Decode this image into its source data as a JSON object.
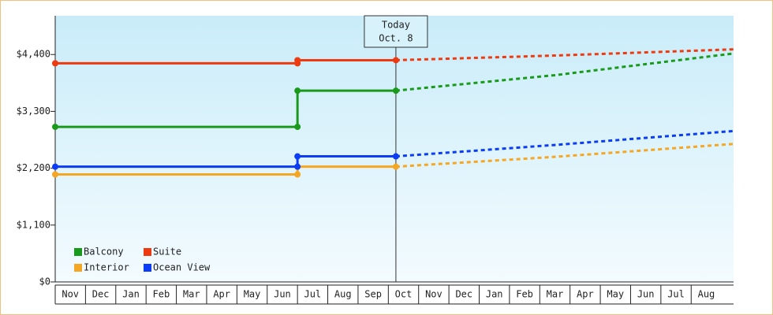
{
  "chart_data": {
    "type": "line",
    "x": [
      0,
      8,
      8,
      11.25,
      16.5,
      22.4
    ],
    "series": [
      {
        "name": "Balcony",
        "color": "#1a9a1a",
        "values": [
          3000,
          3000,
          3700,
          3700,
          4000,
          4420
        ]
      },
      {
        "name": "Suite",
        "color": "#ee3a10",
        "values": [
          4230,
          4230,
          4290,
          4290,
          4380,
          4500
        ]
      },
      {
        "name": "Interior",
        "color": "#f5a623",
        "values": [
          2080,
          2080,
          2230,
          2230,
          2420,
          2670
        ]
      },
      {
        "name": "Ocean View",
        "color": "#0a3df5",
        "values": [
          2230,
          2230,
          2430,
          2430,
          2650,
          2920
        ]
      }
    ],
    "xlim": [
      0,
      22.4
    ],
    "xticks": [
      {
        "value": 0.5,
        "label": "Nov"
      },
      {
        "value": 1.5,
        "label": "Dec"
      },
      {
        "value": 2.5,
        "label": "Jan"
      },
      {
        "value": 3.5,
        "label": "Feb"
      },
      {
        "value": 4.5,
        "label": "Mar"
      },
      {
        "value": 5.5,
        "label": "Apr"
      },
      {
        "value": 6.5,
        "label": "May"
      },
      {
        "value": 7.5,
        "label": "Jun"
      },
      {
        "value": 8.5,
        "label": "Jul"
      },
      {
        "value": 9.5,
        "label": "Aug"
      },
      {
        "value": 10.5,
        "label": "Sep"
      },
      {
        "value": 11.5,
        "label": "Oct"
      },
      {
        "value": 12.5,
        "label": "Nov"
      },
      {
        "value": 13.5,
        "label": "Dec"
      },
      {
        "value": 14.5,
        "label": "Jan"
      },
      {
        "value": 15.5,
        "label": "Feb"
      },
      {
        "value": 16.5,
        "label": "Mar"
      },
      {
        "value": 17.5,
        "label": "Apr"
      },
      {
        "value": 18.5,
        "label": "May"
      },
      {
        "value": 19.5,
        "label": "Jun"
      },
      {
        "value": 20.5,
        "label": "Jul"
      },
      {
        "value": 21.5,
        "label": "Aug"
      }
    ],
    "ylim": [
      0,
      5150
    ],
    "yticks": [
      {
        "value": 0,
        "label": "$0"
      },
      {
        "value": 1100,
        "label": "$1,100"
      },
      {
        "value": 2200,
        "label": "$2,200"
      },
      {
        "value": 3300,
        "label": "$3,300"
      },
      {
        "value": 4400,
        "label": "$4,400"
      }
    ],
    "annotation": {
      "x": 11.25,
      "lines": [
        "Today",
        "Oct. 8"
      ]
    },
    "legend": "lower left"
  }
}
